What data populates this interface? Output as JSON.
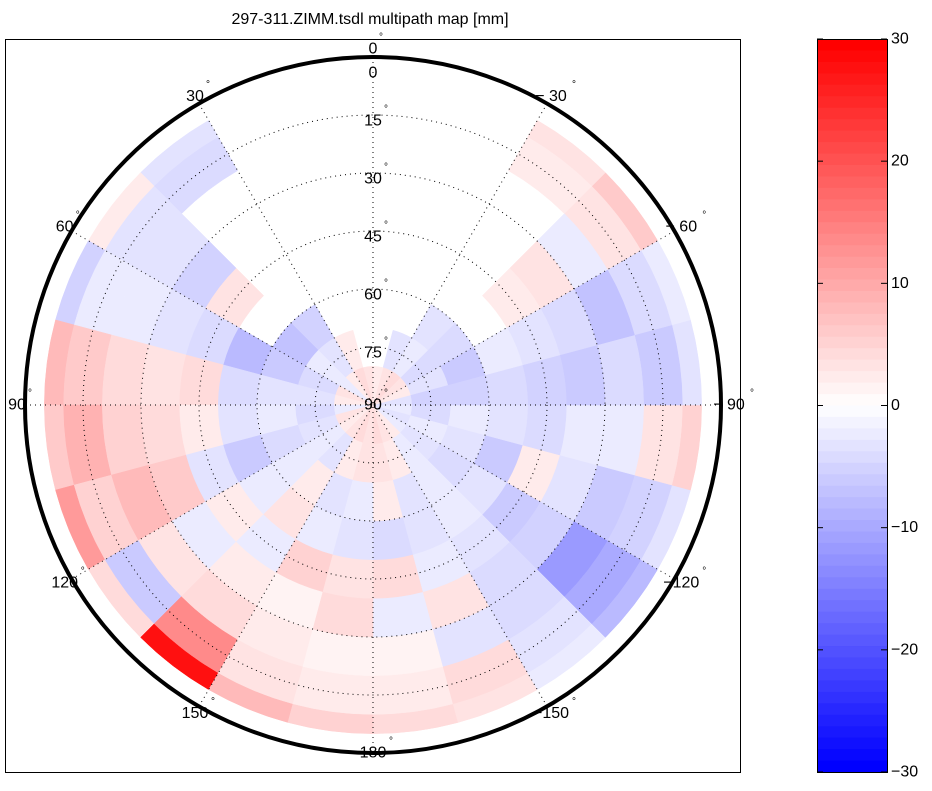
{
  "chart_data": {
    "type": "heatmap",
    "projection": "polar-skyplot",
    "title": "297-311.ZIMM.tsdl multipath map [mm]",
    "azimuth_direction": "counterclockwise",
    "azimuth_zero": "top",
    "azimuth_tick_labels": [
      {
        "az": 0,
        "label": "0"
      },
      {
        "az": 30,
        "label": "30"
      },
      {
        "az": 60,
        "label": "60"
      },
      {
        "az": 90,
        "label": "90"
      },
      {
        "az": 120,
        "label": "120"
      },
      {
        "az": 150,
        "label": "150"
      },
      {
        "az": 180,
        "label": "180"
      },
      {
        "az": -30,
        "label": "− 30"
      },
      {
        "az": -60,
        "label": "− 60"
      },
      {
        "az": -90,
        "label": "− 90"
      },
      {
        "az": -120,
        "label": "−120"
      },
      {
        "az": -150,
        "label": "−150"
      }
    ],
    "elevation_tick_labels": [
      {
        "el": 15,
        "label": "15"
      },
      {
        "el": 30,
        "label": "30"
      },
      {
        "el": 45,
        "label": "45"
      },
      {
        "el": 60,
        "label": "60"
      },
      {
        "el": 75,
        "label": "75"
      },
      {
        "el": 90,
        "label": "90"
      }
    ],
    "degree_symbol": "°",
    "grid": true,
    "elevation_range": [
      0,
      90
    ],
    "azimuth_bin_starts": [
      -180,
      -165,
      -150,
      -135,
      -120,
      -105,
      -90,
      -75,
      -60,
      -45,
      -30,
      -15,
      0,
      15,
      30,
      45,
      60,
      75,
      90,
      105,
      120,
      135,
      150,
      165
    ],
    "elevation_edges": [
      5,
      10,
      20,
      30,
      40,
      50,
      60,
      70,
      80,
      90
    ],
    "values": [
      [
        4,
        3,
        -2,
        -8,
        -3,
        5,
        -3,
        -2,
        6,
        3,
        null,
        null,
        null,
        null,
        -3,
        2,
        -5,
        8,
        6,
        12,
        4,
        28,
        8,
        5
      ],
      [
        2,
        4,
        -3,
        -10,
        -5,
        3,
        -6,
        -4,
        3,
        2,
        null,
        null,
        null,
        null,
        -4,
        -3,
        -2,
        6,
        9,
        5,
        -6,
        14,
        3,
        2
      ],
      [
        1,
        -3,
        -4,
        -12,
        -6,
        -2,
        -4,
        -7,
        -2,
        null,
        null,
        null,
        null,
        null,
        null,
        -3,
        -2,
        4,
        5,
        8,
        3,
        4,
        2,
        1
      ],
      [
        -2,
        3,
        -4,
        -5,
        -3,
        -2,
        -6,
        -4,
        3,
        null,
        null,
        null,
        null,
        null,
        null,
        -5,
        -3,
        3,
        4,
        6,
        -2,
        2,
        1,
        4
      ],
      [
        4,
        -2,
        -3,
        -6,
        2,
        -4,
        -5,
        -3,
        2,
        null,
        null,
        null,
        null,
        null,
        null,
        3,
        -4,
        4,
        2,
        -3,
        2,
        -2,
        5,
        3
      ],
      [
        -4,
        -3,
        -2,
        -3,
        -6,
        -3,
        -4,
        -2,
        null,
        null,
        null,
        null,
        null,
        null,
        null,
        null,
        -8,
        -4,
        -3,
        -6,
        -2,
        3,
        -2,
        -3
      ],
      [
        2,
        -3,
        -2,
        -4,
        -3,
        -2,
        -5,
        -6,
        -4,
        -3,
        null,
        null,
        null,
        null,
        -5,
        -7,
        -6,
        -3,
        -2,
        -4,
        -2,
        2,
        -3,
        -2
      ],
      [
        3,
        2,
        -2,
        -3,
        -2,
        -4,
        -5,
        -3,
        -4,
        -2,
        -3,
        null,
        null,
        2,
        -3,
        -2,
        -4,
        -3,
        -4,
        -3,
        -2,
        -3,
        2,
        3
      ],
      [
        4,
        3,
        2,
        -2,
        -3,
        -2,
        -3,
        2,
        3,
        4,
        3,
        2,
        3,
        4,
        2,
        -2,
        3,
        2,
        -2,
        3,
        2,
        3,
        4,
        3
      ]
    ],
    "colorbar": {
      "ticks": [
        "30",
        "20",
        "10",
        "0",
        "−10",
        "−20",
        "−30"
      ],
      "tick_values": [
        30,
        20,
        10,
        0,
        -10,
        -20,
        -30
      ],
      "range": [
        -30,
        30
      ],
      "colormap": "blue-white-red",
      "levels": 64,
      "low_color": "#0000ff",
      "mid_color": "#ffffff",
      "high_color": "#ff0000"
    }
  }
}
